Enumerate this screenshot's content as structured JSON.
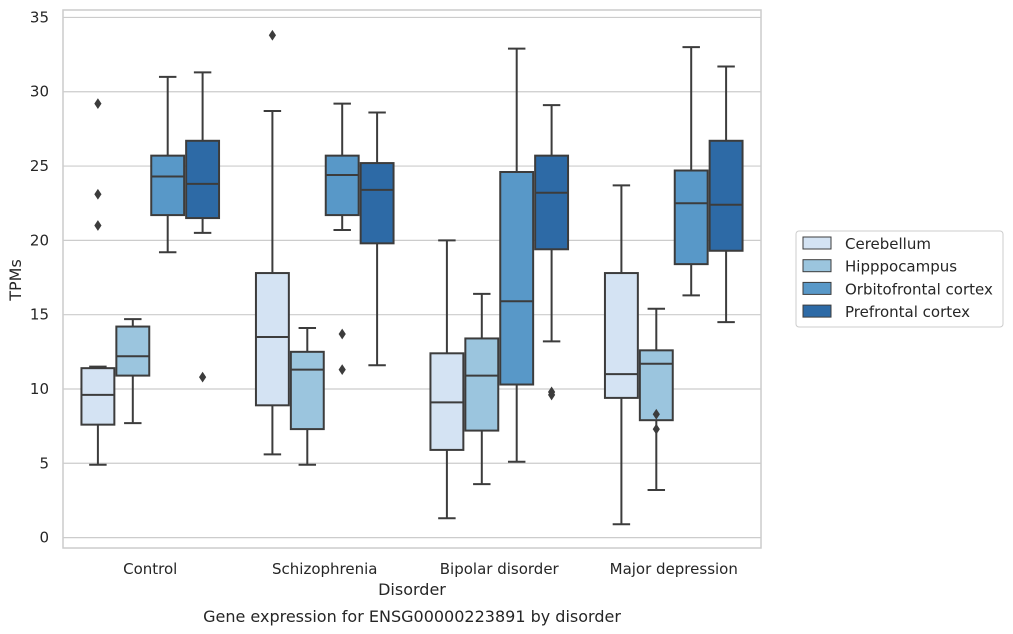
{
  "caption": "Gene expression for ENSG00000223891 by disorder",
  "chart_data": {
    "type": "box",
    "title": "",
    "xlabel": "Disorder",
    "ylabel": "TPMs",
    "ylim": [
      -0.7,
      35.5
    ],
    "yticks": [
      0,
      5,
      10,
      15,
      20,
      25,
      30,
      35
    ],
    "grid": "horizontal",
    "legend_position": "right",
    "categories": [
      "Control",
      "Schizophrenia",
      "Bipolar disorder",
      "Major depression"
    ],
    "series": [
      {
        "name": "Cerebellum",
        "color": "#d4e3f3",
        "boxes": [
          {
            "whislo": 4.9,
            "q1": 7.6,
            "med": 9.6,
            "q3": 11.4,
            "whishi": 11.5,
            "fliers": [
              29.2,
              23.1,
              21.0
            ]
          },
          {
            "whislo": 5.6,
            "q1": 8.9,
            "med": 13.5,
            "q3": 17.8,
            "whishi": 28.7,
            "fliers": [
              33.8
            ]
          },
          {
            "whislo": 1.3,
            "q1": 5.9,
            "med": 9.1,
            "q3": 12.4,
            "whishi": 20.0,
            "fliers": []
          },
          {
            "whislo": 0.9,
            "q1": 9.4,
            "med": 11.0,
            "q3": 17.8,
            "whishi": 23.7,
            "fliers": []
          }
        ]
      },
      {
        "name": "Hipppocampus",
        "color": "#9bc5de",
        "boxes": [
          {
            "whislo": 7.7,
            "q1": 10.9,
            "med": 12.2,
            "q3": 14.2,
            "whishi": 14.7,
            "fliers": []
          },
          {
            "whislo": 4.9,
            "q1": 7.3,
            "med": 11.3,
            "q3": 12.5,
            "whishi": 14.1,
            "fliers": []
          },
          {
            "whislo": 3.6,
            "q1": 7.2,
            "med": 10.9,
            "q3": 13.4,
            "whishi": 16.4,
            "fliers": []
          },
          {
            "whislo": 3.2,
            "q1": 7.9,
            "med": 11.7,
            "q3": 12.6,
            "whishi": 15.4,
            "fliers": [
              8.3,
              7.3
            ]
          }
        ]
      },
      {
        "name": "Orbitofrontal cortex",
        "color": "#5898c8",
        "boxes": [
          {
            "whislo": 19.2,
            "q1": 21.7,
            "med": 24.3,
            "q3": 25.7,
            "whishi": 31.0,
            "fliers": []
          },
          {
            "whislo": 20.7,
            "q1": 21.7,
            "med": 24.4,
            "q3": 25.7,
            "whishi": 29.2,
            "fliers": [
              13.7,
              11.3
            ]
          },
          {
            "whislo": 5.1,
            "q1": 10.3,
            "med": 15.9,
            "q3": 24.6,
            "whishi": 32.9,
            "fliers": []
          },
          {
            "whislo": 16.3,
            "q1": 18.4,
            "med": 22.5,
            "q3": 24.7,
            "whishi": 33.0,
            "fliers": []
          }
        ]
      },
      {
        "name": "Prefrontal cortex",
        "color": "#2d6aa6",
        "boxes": [
          {
            "whislo": 20.5,
            "q1": 21.5,
            "med": 23.8,
            "q3": 26.7,
            "whishi": 31.3,
            "fliers": [
              10.8
            ]
          },
          {
            "whislo": 11.6,
            "q1": 19.8,
            "med": 23.4,
            "q3": 25.2,
            "whishi": 28.6,
            "fliers": []
          },
          {
            "whislo": 13.2,
            "q1": 19.4,
            "med": 23.2,
            "q3": 25.7,
            "whishi": 29.1,
            "fliers": [
              9.8,
              9.6
            ]
          },
          {
            "whislo": 14.5,
            "q1": 19.3,
            "med": 22.4,
            "q3": 26.7,
            "whishi": 31.7,
            "fliers": []
          }
        ]
      }
    ]
  }
}
